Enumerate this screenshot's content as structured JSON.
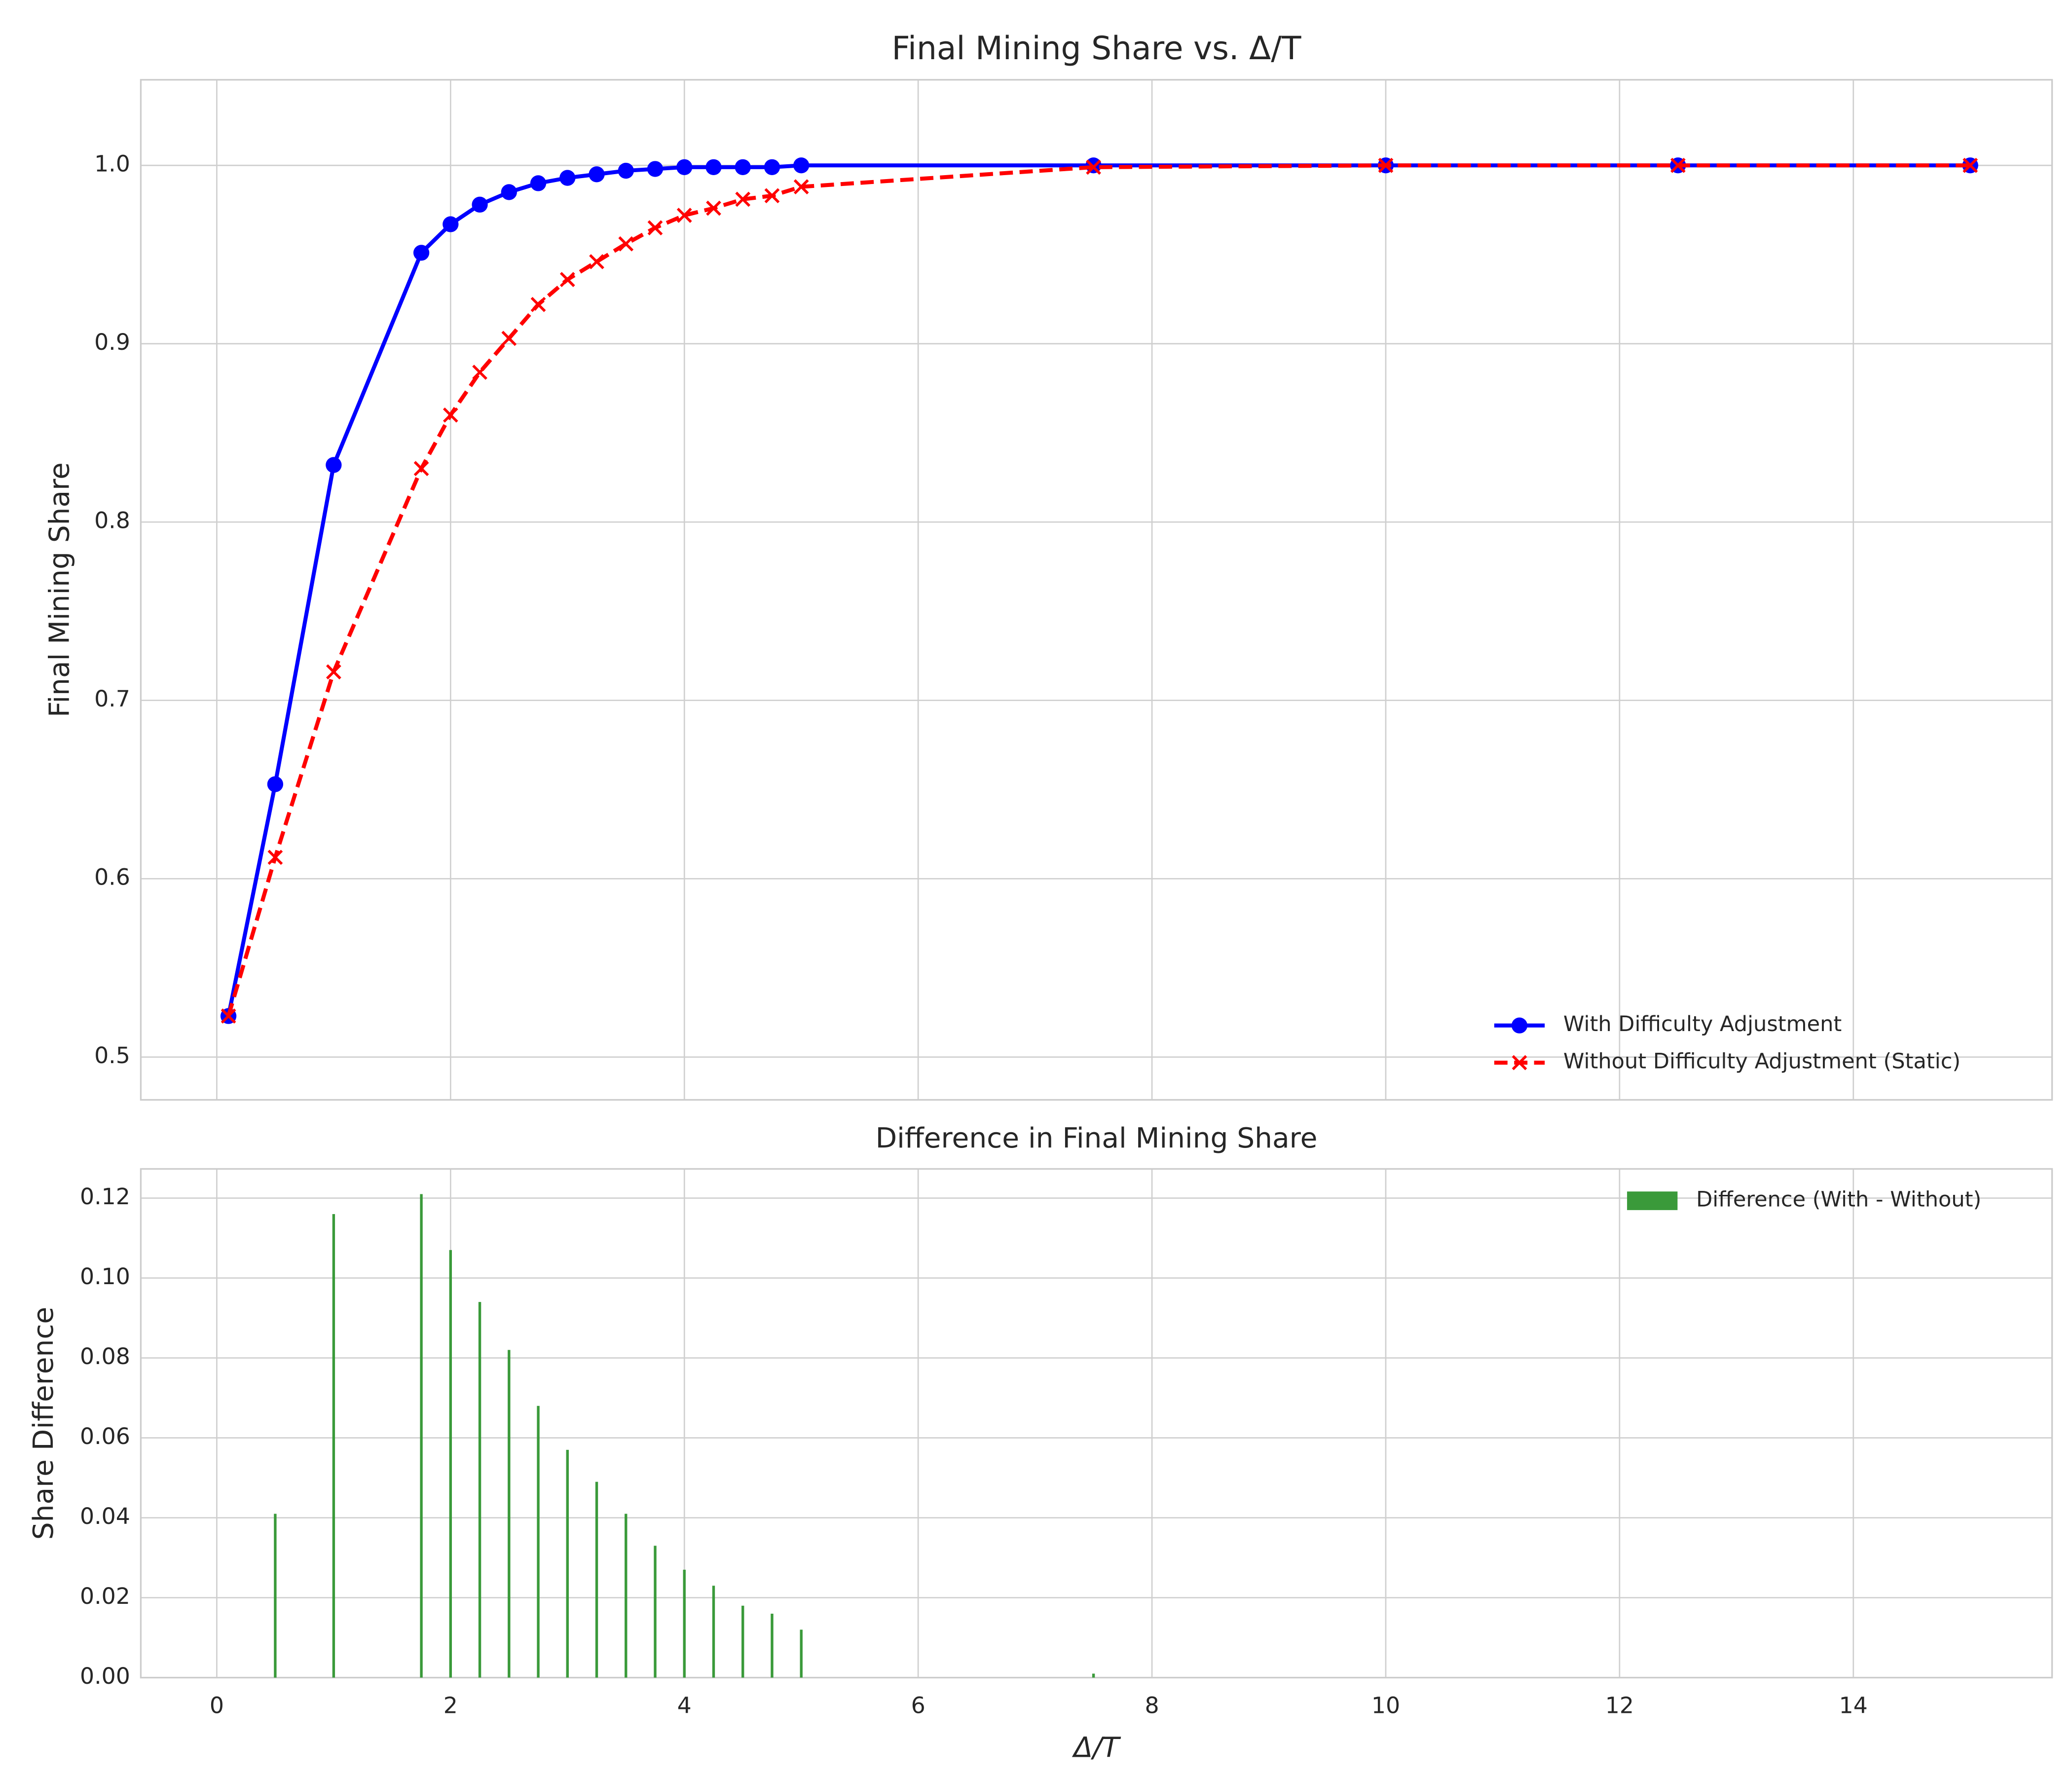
{
  "chart_data": [
    {
      "type": "line",
      "title": "Final Mining Share vs. Δ/T",
      "y_label": "Final Mining Share",
      "x": [
        0.1,
        0.5,
        1.0,
        1.75,
        2.0,
        2.25,
        2.5,
        2.75,
        3.0,
        3.25,
        3.5,
        3.75,
        4.0,
        4.25,
        4.5,
        4.75,
        5.0,
        7.5,
        10,
        12.5,
        15
      ],
      "series": [
        {
          "name": "With Difficulty Adjustment",
          "color": "#0000ff",
          "marker": "o",
          "dash": "solid",
          "values": [
            0.523,
            0.653,
            0.832,
            0.951,
            0.967,
            0.978,
            0.985,
            0.99,
            0.993,
            0.995,
            0.997,
            0.998,
            0.999,
            0.999,
            0.999,
            0.999,
            1.0,
            1.0,
            1.0,
            1.0,
            1.0
          ]
        },
        {
          "name": "Without Difficulty Adjustment (Static)",
          "color": "#ff0000",
          "marker": "x",
          "dash": "dashed",
          "values": [
            0.523,
            0.612,
            0.716,
            0.83,
            0.86,
            0.884,
            0.903,
            0.922,
            0.936,
            0.946,
            0.956,
            0.965,
            0.972,
            0.976,
            0.981,
            0.983,
            0.988,
            0.999,
            1.0,
            1.0,
            1.0
          ]
        }
      ],
      "xlim": [
        -0.65,
        15.7
      ],
      "ylim": [
        0.476,
        1.048
      ],
      "xticks": [
        0,
        2,
        4,
        6,
        8,
        10,
        12,
        14
      ],
      "yticks": [
        0.5,
        0.6,
        0.7,
        0.8,
        0.9,
        {
          "value": 1.0,
          "label": "1.0"
        }
      ],
      "grid": true,
      "legend": "lower right"
    },
    {
      "type": "bar",
      "title": "Difference in Final Mining Share",
      "x_label": "Δ/T",
      "y_label": "Share Difference",
      "x": [
        0.1,
        0.5,
        1.0,
        1.75,
        2.0,
        2.25,
        2.5,
        2.75,
        3.0,
        3.25,
        3.5,
        3.75,
        4.0,
        4.25,
        4.5,
        4.75,
        5.0,
        7.5,
        10,
        12.5,
        15
      ],
      "series": [
        {
          "name": "Difference (With - Without)",
          "color": "#3a9a3a",
          "values": [
            0,
            0.041,
            0.116,
            0.121,
            0.107,
            0.094,
            0.082,
            0.068,
            0.057,
            0.049,
            0.041,
            0.033,
            0.027,
            0.023,
            0.018,
            0.016,
            0.012,
            0.001,
            0,
            0,
            0
          ]
        }
      ],
      "xlim": [
        -0.65,
        15.7
      ],
      "ylim": [
        0,
        0.1273
      ],
      "xticks": [
        0,
        2,
        4,
        6,
        8,
        10,
        12,
        14
      ],
      "yticks": [
        {
          "value": 0,
          "label": "0.00"
        },
        {
          "value": 0.02,
          "label": "0.02"
        },
        {
          "value": 0.04,
          "label": "0.04"
        },
        {
          "value": 0.06,
          "label": "0.06"
        },
        {
          "value": 0.08,
          "label": "0.08"
        },
        {
          "value": 0.1,
          "label": "0.10"
        },
        {
          "value": 0.12,
          "label": "0.12"
        }
      ],
      "grid": true,
      "legend": "upper right"
    }
  ]
}
